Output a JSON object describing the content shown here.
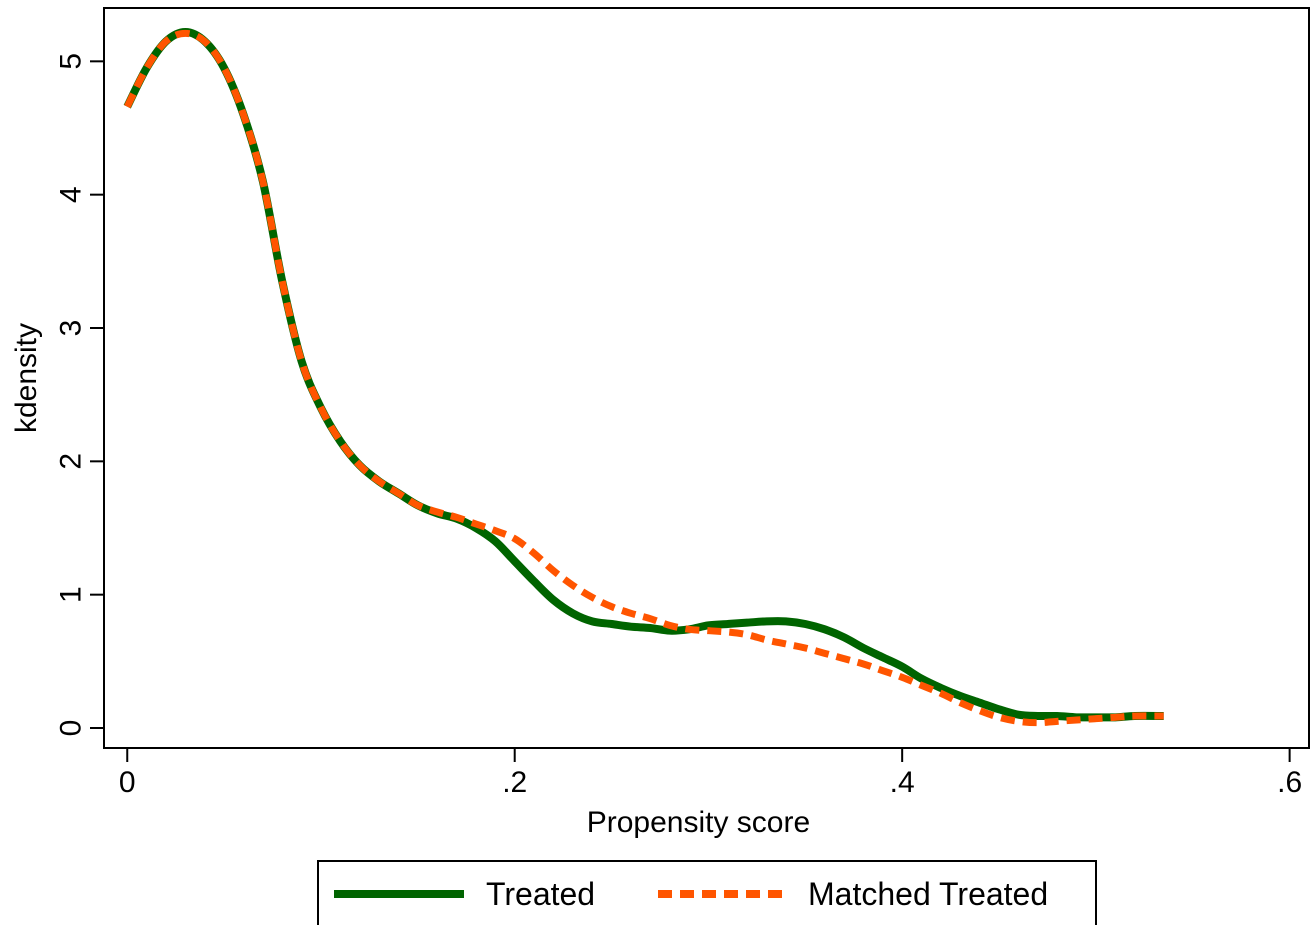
{
  "chart_data": {
    "type": "line",
    "title": "",
    "xlabel": "Propensity score",
    "ylabel": "kdensity",
    "xlim": [
      -0.012,
      0.61
    ],
    "ylim": [
      -0.15,
      5.4
    ],
    "xticks": [
      {
        "value": 0,
        "label": "0"
      },
      {
        "value": 0.2,
        "label": ".2"
      },
      {
        "value": 0.4,
        "label": ".4"
      },
      {
        "value": 0.6,
        "label": ".6"
      }
    ],
    "yticks": [
      {
        "value": 0,
        "label": "0"
      },
      {
        "value": 1,
        "label": "1"
      },
      {
        "value": 2,
        "label": "2"
      },
      {
        "value": 3,
        "label": "3"
      },
      {
        "value": 4,
        "label": "4"
      },
      {
        "value": 5,
        "label": "5"
      }
    ],
    "grid": false,
    "legend_position": "bottom",
    "series": [
      {
        "name": "Treated",
        "color": "#006400",
        "style": "solid",
        "x": [
          0,
          0.01,
          0.02,
          0.03,
          0.04,
          0.05,
          0.06,
          0.07,
          0.08,
          0.09,
          0.1,
          0.11,
          0.12,
          0.13,
          0.14,
          0.15,
          0.16,
          0.17,
          0.18,
          0.19,
          0.2,
          0.21,
          0.22,
          0.23,
          0.24,
          0.25,
          0.26,
          0.27,
          0.28,
          0.29,
          0.3,
          0.31,
          0.32,
          0.33,
          0.34,
          0.35,
          0.36,
          0.37,
          0.38,
          0.39,
          0.4,
          0.41,
          0.42,
          0.43,
          0.44,
          0.45,
          0.46,
          0.47,
          0.48,
          0.49,
          0.5,
          0.51,
          0.52,
          0.535
        ],
        "values": [
          4.66,
          4.95,
          5.15,
          5.22,
          5.15,
          4.95,
          4.6,
          4.1,
          3.35,
          2.75,
          2.4,
          2.15,
          1.97,
          1.85,
          1.76,
          1.67,
          1.61,
          1.57,
          1.5,
          1.4,
          1.25,
          1.1,
          0.96,
          0.86,
          0.8,
          0.78,
          0.76,
          0.75,
          0.73,
          0.74,
          0.77,
          0.78,
          0.79,
          0.8,
          0.8,
          0.78,
          0.74,
          0.68,
          0.6,
          0.53,
          0.46,
          0.37,
          0.3,
          0.24,
          0.19,
          0.14,
          0.1,
          0.09,
          0.09,
          0.08,
          0.08,
          0.08,
          0.09,
          0.09
        ]
      },
      {
        "name": "Matched Treated",
        "color": "#ff5500",
        "style": "dashed",
        "x": [
          0,
          0.01,
          0.02,
          0.03,
          0.04,
          0.05,
          0.06,
          0.07,
          0.08,
          0.09,
          0.1,
          0.11,
          0.12,
          0.13,
          0.14,
          0.15,
          0.16,
          0.17,
          0.18,
          0.19,
          0.2,
          0.21,
          0.22,
          0.23,
          0.24,
          0.25,
          0.26,
          0.27,
          0.28,
          0.29,
          0.3,
          0.31,
          0.32,
          0.33,
          0.34,
          0.35,
          0.36,
          0.37,
          0.38,
          0.39,
          0.4,
          0.41,
          0.42,
          0.43,
          0.44,
          0.45,
          0.46,
          0.47,
          0.48,
          0.49,
          0.5,
          0.51,
          0.52,
          0.535
        ],
        "values": [
          4.66,
          4.95,
          5.15,
          5.21,
          5.15,
          4.95,
          4.6,
          4.1,
          3.35,
          2.75,
          2.4,
          2.15,
          1.97,
          1.85,
          1.76,
          1.67,
          1.62,
          1.58,
          1.53,
          1.48,
          1.42,
          1.31,
          1.18,
          1.07,
          0.98,
          0.91,
          0.86,
          0.82,
          0.77,
          0.74,
          0.73,
          0.72,
          0.7,
          0.66,
          0.63,
          0.6,
          0.56,
          0.52,
          0.48,
          0.43,
          0.38,
          0.32,
          0.26,
          0.19,
          0.13,
          0.08,
          0.05,
          0.04,
          0.05,
          0.06,
          0.07,
          0.08,
          0.09,
          0.09
        ]
      }
    ]
  }
}
